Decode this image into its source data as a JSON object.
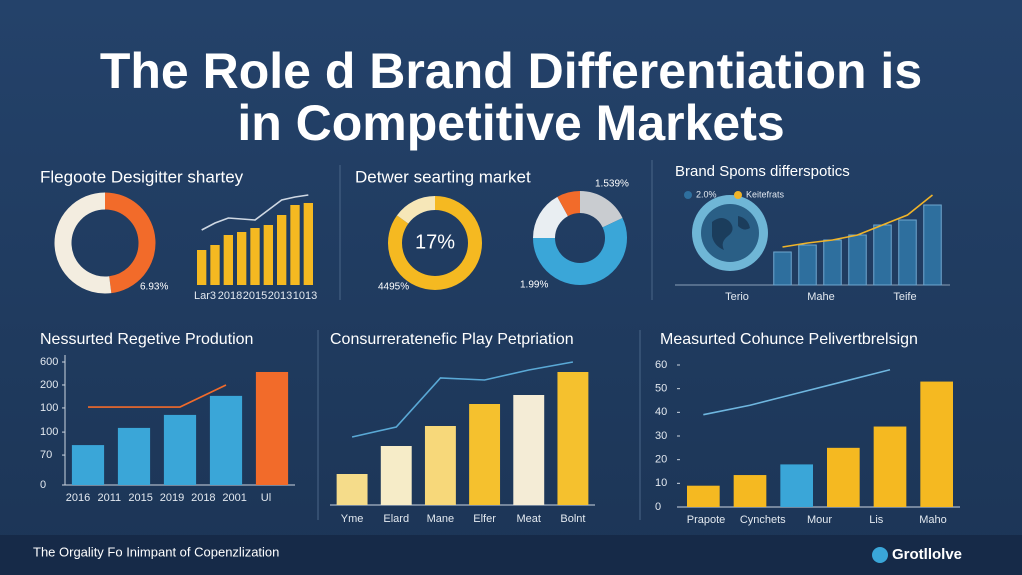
{
  "title": [
    "The Role d Brand Differentiation is",
    "in Competitive Markets"
  ],
  "footer": "The Orgality Fo Inimpant of Copenzlization",
  "logo": "Grotllolve",
  "chart_data": [
    {
      "type": "donut",
      "title": "Flegoote Desigitter shartey",
      "values": [
        48,
        52
      ],
      "colors": [
        "#f26b2a",
        "#f3ede0"
      ],
      "annotations": [
        "6.93%"
      ]
    },
    {
      "type": "bar",
      "values": [
        35,
        40,
        50,
        53,
        57,
        60,
        70,
        80,
        82
      ],
      "colors": [
        "#f5b921"
      ],
      "line_values": [
        55,
        62,
        67,
        66,
        65,
        75,
        85,
        88,
        90
      ],
      "line_color": "#cfd8e3",
      "x_labels": [
        "Lar3",
        "2018",
        "2015",
        "2013",
        "1013"
      ],
      "ylim": [
        0,
        95
      ]
    },
    {
      "type": "donut",
      "title": "Detwer searting market",
      "values": [
        85,
        15
      ],
      "colors": [
        "#f5b921",
        "#f6e7b8"
      ],
      "annotations": [
        "17%",
        "4495%"
      ]
    },
    {
      "type": "donut",
      "values": [
        18,
        57,
        17,
        8
      ],
      "colors": [
        "#c9ccd0",
        "#3aa6d8",
        "#e9eef2",
        "#f26b2a"
      ],
      "annotations": [
        "1.539%",
        "1.99%"
      ]
    },
    {
      "type": "bar",
      "title": "Brand Spoms differspotics",
      "values": [
        33,
        40,
        45,
        50,
        60,
        65,
        80
      ],
      "colors": [
        "#2e6f9e"
      ],
      "bar_name": "2.0%",
      "line_values": [
        38,
        42,
        45,
        50,
        60,
        70,
        90
      ],
      "line_color": "#f0b429",
      "line_name": "Keitefrats",
      "x_labels": [
        "Terio",
        "Mahe",
        "Teife"
      ],
      "ylim": [
        0,
        95
      ]
    },
    {
      "type": "bar",
      "title": "Nessurted Regetive Prodution",
      "values": [
        172,
        246,
        302,
        384,
        487
      ],
      "colors": [
        "#3aa6d8",
        "#3aa6d8",
        "#3aa6d8",
        "#3aa6d8",
        "#f26b2a"
      ],
      "line_values": [
        336,
        336,
        336,
        431,
        null
      ],
      "line_color": "#f26b2a",
      "x_labels": [
        "2016",
        "2011",
        "2015",
        "2019",
        "2018",
        "2001",
        "Ul"
      ],
      "ylim": [
        0,
        530
      ],
      "yticks": [
        {
          "value": 530,
          "label": "600"
        },
        {
          "value": 431,
          "label": "200"
        },
        {
          "value": 332,
          "label": "100"
        },
        {
          "value": 228,
          "label": "100"
        },
        {
          "value": 129,
          "label": "70"
        },
        0
      ]
    },
    {
      "type": "bar",
      "title": "Consurreratenefic Play Petpriation",
      "categories": [
        "Yme",
        "Elard",
        "Mane",
        "Elfer",
        "Meat",
        "Bolnt"
      ],
      "values": [
        31,
        59,
        79,
        101,
        110,
        133
      ],
      "colors": [
        "#f5dc8a",
        "#f6ecc8",
        "#f7d87a",
        "#f5c12e",
        "#f4ecd6",
        "#f5c12e"
      ],
      "line_values": [
        68,
        78,
        127,
        125,
        135,
        143
      ],
      "line_color": "#5aa9d6",
      "ylim": [
        0,
        150
      ]
    },
    {
      "type": "bar",
      "title": "Measurted Cohunce Pelivertbrelsign",
      "values": [
        9,
        13.5,
        18,
        25,
        34,
        53
      ],
      "colors": [
        "#f5b921",
        "#f5b921",
        "#3aa6d8",
        "#f5b921",
        "#f5b921",
        "#f5b921"
      ],
      "line_values": [
        39,
        43,
        48,
        53,
        58,
        null
      ],
      "line_color": "#6fb7e0",
      "x_labels": [
        "Prapote",
        "Cynchets",
        "Mour",
        "Lis",
        "Maho"
      ],
      "ylim": [
        0,
        60
      ],
      "yticks": [
        60,
        50,
        40,
        30,
        20,
        10,
        0
      ]
    }
  ]
}
